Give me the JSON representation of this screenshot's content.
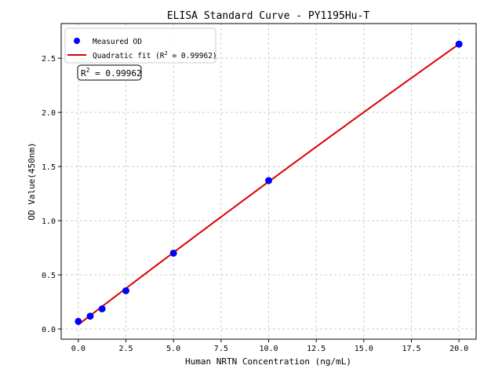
{
  "chart_data": {
    "type": "scatter",
    "title": "ELISA Standard Curve - PY1195Hu-T",
    "xlabel": "Human NRTN Concentration (ng/mL)",
    "ylabel": "OD Value(450nm)",
    "xlim": [
      -0.9,
      20.9
    ],
    "ylim": [
      -0.094,
      2.82
    ],
    "xticks": [
      "0.0",
      "2.5",
      "5.0",
      "7.5",
      "10.0",
      "12.5",
      "15.0",
      "17.5",
      "20.0"
    ],
    "yticks": [
      "0.0",
      "0.5",
      "1.0",
      "1.5",
      "2.0",
      "2.5"
    ],
    "grid": true,
    "legend_position": "top-left",
    "series": [
      {
        "name": "Measured OD",
        "kind": "scatter",
        "color": "#0000ff",
        "x": [
          0,
          0.625,
          1.25,
          2.5,
          5,
          10,
          20
        ],
        "y": [
          0.07,
          0.118,
          0.186,
          0.353,
          0.7,
          1.37,
          2.63
        ]
      },
      {
        "name": "Quadratic fit (R² = 0.99962)",
        "kind": "line",
        "color": "#dd0000",
        "coefficients": {
          "c0": 0.04,
          "c1": 0.1345,
          "c2": -0.00025
        },
        "x_range": [
          0,
          20
        ]
      }
    ],
    "legend": {
      "scatter_label": "Measured OD",
      "fit_label_prefix": "Quadratic fit (R",
      "fit_label_sup": "2",
      "fit_label_suffix": " = 0.99962)"
    },
    "annotation": {
      "prefix": "R",
      "sup": "2",
      "suffix": " = 0.99962"
    }
  }
}
